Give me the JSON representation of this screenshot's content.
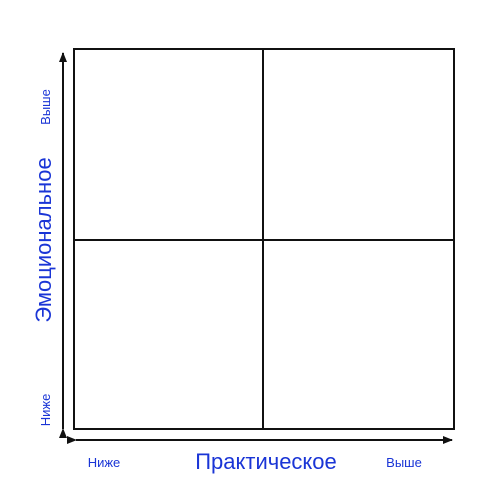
{
  "diagram": {
    "x_axis": {
      "label": "Практическое",
      "low": "Ниже",
      "high": "Выше"
    },
    "y_axis": {
      "label": "Эмоциональное",
      "low": "Ниже",
      "high": "Выше"
    },
    "grid": {
      "rows": 2,
      "cols": 2
    },
    "colors": {
      "lines": "#111111",
      "text": "#1a35d6",
      "background": "#ffffff"
    }
  }
}
